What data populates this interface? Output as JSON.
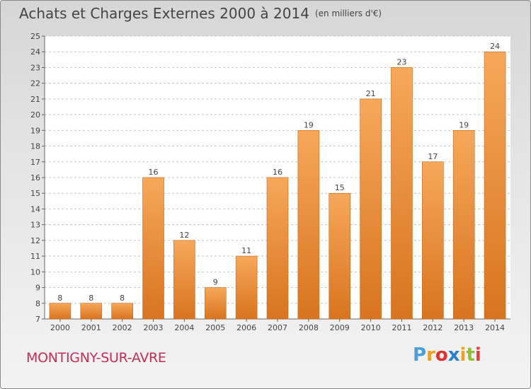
{
  "title": "Achats et Charges Externes 2000 à 2014",
  "unit": "(en milliers d'€)",
  "commune": "MONTIGNY-SUR-AVRE",
  "logo": {
    "letters": [
      "P",
      "r",
      "o",
      "x",
      "i",
      "t",
      "i"
    ],
    "colors": [
      "#4a9fd8",
      "#f0a020",
      "#e03030",
      "#2a7fd0",
      "#f0a020",
      "#90c030",
      "#e04040"
    ]
  },
  "colors": {
    "bar_light": "#f6a85a",
    "bar_dark": "#d8741f",
    "text": "#444444",
    "commune": "#c0305a"
  },
  "chart_data": {
    "type": "bar",
    "title": "Achats et Charges Externes 2000 à 2014",
    "categories": [
      "2000",
      "2001",
      "2002",
      "2003",
      "2004",
      "2005",
      "2006",
      "2007",
      "2008",
      "2009",
      "2010",
      "2011",
      "2012",
      "2013",
      "2014"
    ],
    "values": [
      8,
      8,
      8,
      16,
      12,
      9,
      11,
      16,
      19,
      15,
      21,
      23,
      17,
      19,
      24
    ],
    "ylim": [
      7,
      25
    ],
    "yticks": [
      7,
      8,
      9,
      10,
      11,
      12,
      13,
      14,
      15,
      16,
      17,
      18,
      19,
      20,
      21,
      22,
      23,
      24,
      25
    ],
    "grid": "horizontal",
    "data_labels": true
  }
}
